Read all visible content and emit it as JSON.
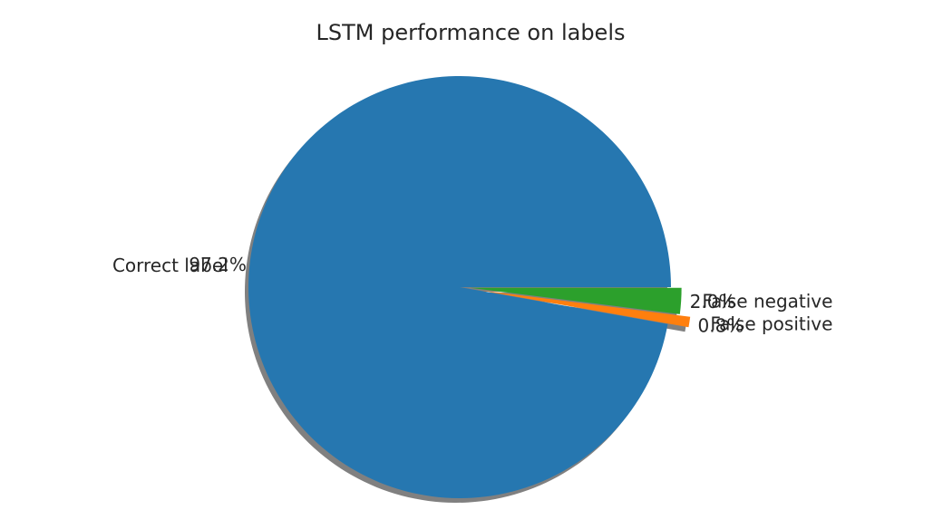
{
  "chart_data": {
    "type": "pie",
    "title": "LSTM performance on labels",
    "slices": [
      {
        "label": "Correct label",
        "value": 97.2,
        "pct_label": "97.2%",
        "color": "#2677b0",
        "explode": 0.0
      },
      {
        "label": "False positive",
        "value": 0.8,
        "pct_label": "0.8%",
        "color": "#ff7f0e",
        "explode": 0.1
      },
      {
        "label": "False negative",
        "value": 2.0,
        "pct_label": "2.0%",
        "color": "#2ca02c",
        "explode": 0.05
      }
    ],
    "shadow": true,
    "counterclock": true
  }
}
